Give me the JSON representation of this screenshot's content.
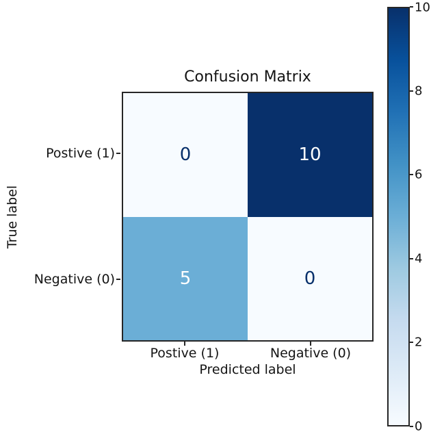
{
  "figure": {
    "background": "#ffffff",
    "spine_color": "#262626",
    "text_color": "#141414"
  },
  "chart_data": {
    "type": "heatmap",
    "title": "Confusion Matrix",
    "xlabel": "Predicted label",
    "ylabel": "True label",
    "x_tick_labels": [
      "Postive (1)",
      "Negative (0)"
    ],
    "y_tick_labels": [
      "Postive (1)",
      "Negative (0)"
    ],
    "matrix": [
      [
        0,
        10
      ],
      [
        5,
        0
      ]
    ],
    "cell_colors": [
      [
        "#f7fbff",
        "#08306b"
      ],
      [
        "#6baed6",
        "#f7fbff"
      ]
    ],
    "cell_text_colors": [
      [
        "#08306b",
        "#ffffff"
      ],
      [
        "#ffffff",
        "#08306b"
      ]
    ],
    "colormap": {
      "name": "Blues",
      "stops_low_to_high": [
        "#f7fbff",
        "#deebf7",
        "#c6dbef",
        "#9ecae1",
        "#6baed6",
        "#4292c6",
        "#2171b5",
        "#08519c",
        "#08306b"
      ]
    },
    "colorbar": {
      "min": 0,
      "max": 10,
      "ticks": [
        0,
        2,
        4,
        6,
        8,
        10
      ],
      "position": "right"
    },
    "grid": false,
    "legend": false
  }
}
